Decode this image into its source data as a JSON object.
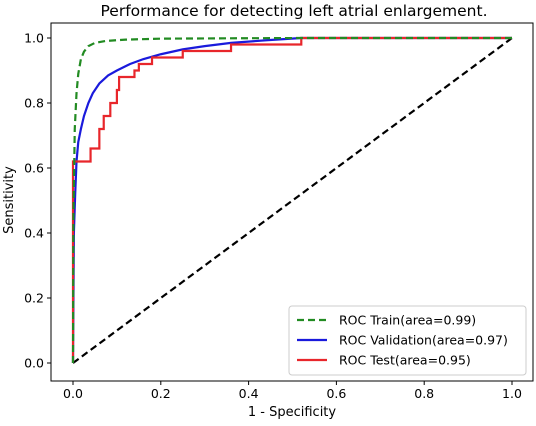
{
  "chart_data": {
    "type": "line",
    "title": "Performance for detecting left atrial enlargement.",
    "xlabel": "1 - Specificity",
    "ylabel": "Sensitivity",
    "xlim": [
      0,
      1
    ],
    "ylim": [
      0,
      1
    ],
    "xticks": [
      "0.0",
      "0.2",
      "0.4",
      "0.6",
      "0.8",
      "1.0"
    ],
    "yticks": [
      "0.0",
      "0.2",
      "0.4",
      "0.6",
      "0.8",
      "1.0"
    ],
    "grid": false,
    "legend_position": "bottom-right",
    "series": [
      {
        "name": "ROC Train(area=0.99)",
        "color": "#228b22",
        "dash": "dashed",
        "points": [
          [
            0,
            0
          ],
          [
            0.001,
            0.45
          ],
          [
            0.004,
            0.72
          ],
          [
            0.008,
            0.83
          ],
          [
            0.012,
            0.89
          ],
          [
            0.018,
            0.935
          ],
          [
            0.025,
            0.958
          ],
          [
            0.035,
            0.975
          ],
          [
            0.05,
            0.985
          ],
          [
            0.075,
            0.991
          ],
          [
            0.12,
            0.995
          ],
          [
            0.2,
            0.998
          ],
          [
            0.35,
            0.999
          ],
          [
            0.52,
            1.0
          ],
          [
            1.0,
            1.0
          ]
        ]
      },
      {
        "name": "ROC Validation(area=0.97)",
        "color": "#1a1adc",
        "dash": "solid",
        "points": [
          [
            0,
            0
          ],
          [
            0.002,
            0.4
          ],
          [
            0.005,
            0.52
          ],
          [
            0.008,
            0.62
          ],
          [
            0.012,
            0.68
          ],
          [
            0.018,
            0.72
          ],
          [
            0.025,
            0.76
          ],
          [
            0.035,
            0.8
          ],
          [
            0.045,
            0.83
          ],
          [
            0.06,
            0.86
          ],
          [
            0.08,
            0.885
          ],
          [
            0.1,
            0.9
          ],
          [
            0.13,
            0.92
          ],
          [
            0.16,
            0.935
          ],
          [
            0.2,
            0.95
          ],
          [
            0.25,
            0.965
          ],
          [
            0.3,
            0.975
          ],
          [
            0.36,
            0.985
          ],
          [
            0.44,
            0.993
          ],
          [
            0.52,
            1.0
          ],
          [
            1.0,
            1.0
          ]
        ]
      },
      {
        "name": "ROC Test(area=0.95)",
        "color": "#e8262b",
        "dash": "solid",
        "points": [
          [
            0,
            0
          ],
          [
            0,
            0.62
          ],
          [
            0.04,
            0.62
          ],
          [
            0.04,
            0.66
          ],
          [
            0.06,
            0.66
          ],
          [
            0.06,
            0.72
          ],
          [
            0.07,
            0.72
          ],
          [
            0.07,
            0.76
          ],
          [
            0.085,
            0.76
          ],
          [
            0.085,
            0.8
          ],
          [
            0.1,
            0.8
          ],
          [
            0.1,
            0.84
          ],
          [
            0.105,
            0.84
          ],
          [
            0.105,
            0.88
          ],
          [
            0.14,
            0.88
          ],
          [
            0.14,
            0.9
          ],
          [
            0.15,
            0.9
          ],
          [
            0.15,
            0.92
          ],
          [
            0.18,
            0.92
          ],
          [
            0.18,
            0.94
          ],
          [
            0.25,
            0.94
          ],
          [
            0.25,
            0.96
          ],
          [
            0.36,
            0.96
          ],
          [
            0.36,
            0.98
          ],
          [
            0.52,
            0.98
          ],
          [
            0.52,
            1.0
          ],
          [
            1.0,
            1.0
          ]
        ]
      },
      {
        "name": "",
        "color": "#000000",
        "dash": "dashed",
        "points": [
          [
            0,
            0
          ],
          [
            1,
            1
          ]
        ]
      }
    ]
  }
}
